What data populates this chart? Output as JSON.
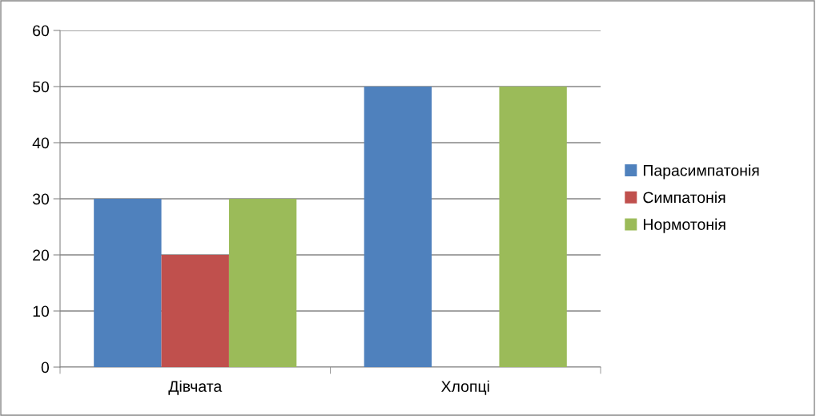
{
  "chart_data": {
    "type": "bar",
    "categories": [
      "Дівчата",
      "Хлопці"
    ],
    "series": [
      {
        "name": "Парасимпатонія",
        "color": "#4f81bd",
        "values": [
          30,
          50
        ]
      },
      {
        "name": "Симпатонія",
        "color": "#c0504d",
        "values": [
          20,
          0
        ]
      },
      {
        "name": "Нормотонія",
        "color": "#9bbb59",
        "values": [
          30,
          50
        ]
      }
    ],
    "ylim": [
      0,
      60
    ],
    "yticks": [
      0,
      10,
      20,
      30,
      40,
      50,
      60
    ],
    "grid": "y",
    "legend": "right"
  }
}
